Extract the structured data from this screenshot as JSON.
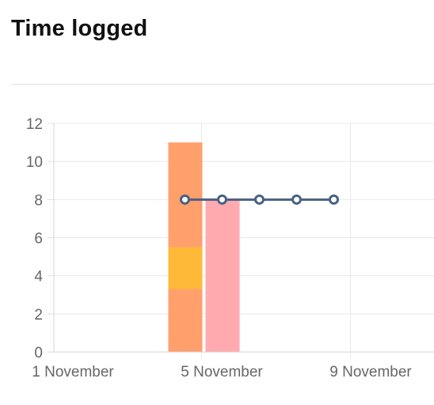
{
  "header": {
    "title": "Time logged"
  },
  "chart_data": {
    "type": "bar",
    "x_ticks": [
      "1 November",
      "5 November",
      "9 November"
    ],
    "y_ticks": [
      0,
      2,
      4,
      6,
      8,
      10,
      12
    ],
    "ylim": [
      0,
      12
    ],
    "grid": true,
    "stacked_bars": {
      "x": "4 November",
      "segments": [
        {
          "value": 3.3,
          "color": "#ff9f6c"
        },
        {
          "value": 2.2,
          "color": "#ffb938"
        },
        {
          "value": 5.5,
          "color": "#ff9f6c"
        }
      ]
    },
    "bars": [
      {
        "x": "5 November",
        "value": 8,
        "color": "#ffaaaf"
      }
    ],
    "line": {
      "color": "#4a6184",
      "points": [
        {
          "x": "4 November",
          "y": 8
        },
        {
          "x": "5 November",
          "y": 8
        },
        {
          "x": "6 November",
          "y": 8
        },
        {
          "x": "7 November",
          "y": 8
        },
        {
          "x": "8 November",
          "y": 8
        }
      ]
    }
  }
}
